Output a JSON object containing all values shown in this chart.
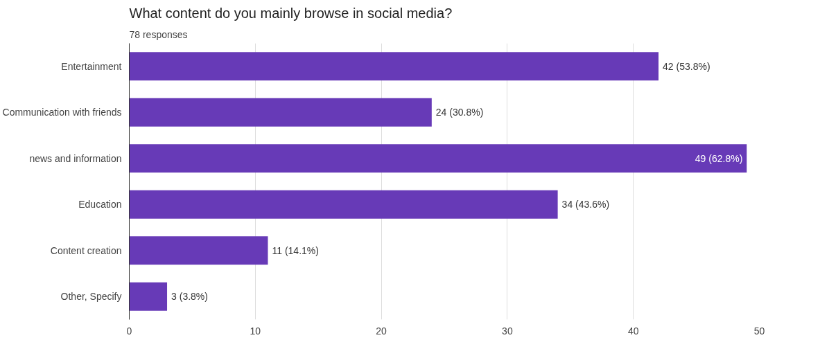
{
  "chart_data": {
    "type": "bar",
    "orientation": "horizontal",
    "title": "What content do you mainly browse in social media?",
    "subtitle": "78 responses",
    "categories": [
      "Entertainment",
      "Communication with friends",
      "news and information",
      "Education",
      "Content creation",
      "Other, Specify"
    ],
    "values": [
      42,
      24,
      49,
      34,
      11,
      3
    ],
    "value_labels": [
      "42 (53.8%)",
      "24 (30.8%)",
      "49 (62.8%)",
      "34 (43.6%)",
      "11 (14.1%)",
      "3 (3.8%)"
    ],
    "color": "#673ab7",
    "xlim": [
      0,
      50
    ],
    "xticks": [
      0,
      10,
      20,
      30,
      40,
      50
    ],
    "grid": "x"
  }
}
